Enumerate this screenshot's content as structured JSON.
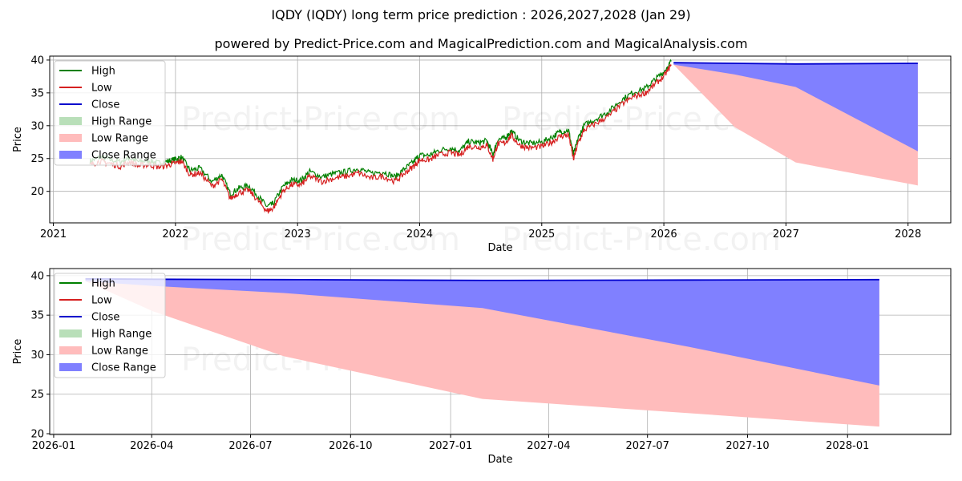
{
  "title": "IQDY (IQDY) long term price prediction : 2026,2027,2028 (Jan 29)",
  "subtitle": "powered by Predict-Price.com and MagicalPrediction.com and MagicalAnalysis.com",
  "watermark": "Predict-Price.com",
  "colors": {
    "high": "#008000",
    "low": "#d62020",
    "close": "#0000cc",
    "high_range": "#b9dfb9",
    "low_range": "#ffbcbc",
    "close_range": "#8080ff",
    "grid": "#b0b0b0"
  },
  "legend": [
    {
      "label": "High",
      "kind": "line",
      "color_key": "high"
    },
    {
      "label": "Low",
      "kind": "line",
      "color_key": "low"
    },
    {
      "label": "Close",
      "kind": "line",
      "color_key": "close"
    },
    {
      "label": "High Range",
      "kind": "patch",
      "color_key": "high_range"
    },
    {
      "label": "Low Range",
      "kind": "patch",
      "color_key": "low_range"
    },
    {
      "label": "Close Range",
      "kind": "patch",
      "color_key": "close_range"
    }
  ],
  "chart_data": [
    {
      "type": "line",
      "name": "long-term",
      "xlabel": "Date",
      "ylabel": "Price",
      "xlim": [
        2020.97,
        2028.35
      ],
      "ylim": [
        15.2,
        40.6
      ],
      "xticks": [
        {
          "value": 2021,
          "label": "2021"
        },
        {
          "value": 2022,
          "label": "2022"
        },
        {
          "value": 2023,
          "label": "2023"
        },
        {
          "value": 2024,
          "label": "2024"
        },
        {
          "value": 2025,
          "label": "2025"
        },
        {
          "value": 2026,
          "label": "2026"
        },
        {
          "value": 2027,
          "label": "2027"
        },
        {
          "value": 2028,
          "label": "2028"
        }
      ],
      "yticks": [
        20,
        25,
        30,
        35,
        40
      ],
      "history": {
        "x": [
          2021.3,
          2021.38,
          2021.45,
          2021.55,
          2021.62,
          2021.7,
          2021.78,
          2021.86,
          2021.94,
          2022.0,
          2022.05,
          2022.12,
          2022.2,
          2022.3,
          2022.38,
          2022.45,
          2022.52,
          2022.6,
          2022.68,
          2022.75,
          2022.8,
          2022.88,
          2022.95,
          2023.03,
          2023.1,
          2023.2,
          2023.3,
          2023.4,
          2023.5,
          2023.6,
          2023.7,
          2023.8,
          2023.88,
          2023.95,
          2024.0,
          2024.08,
          2024.15,
          2024.25,
          2024.33,
          2024.4,
          2024.48,
          2024.55,
          2024.6,
          2024.64,
          2024.7,
          2024.75,
          2024.82,
          2024.9,
          2025.0,
          2025.08,
          2025.15,
          2025.22,
          2025.26,
          2025.3,
          2025.35,
          2025.45,
          2025.55,
          2025.65,
          2025.75,
          2025.85,
          2025.92,
          2026.0,
          2026.06
        ],
        "low": [
          24.0,
          24.6,
          24.3,
          23.8,
          24.5,
          23.9,
          24.1,
          23.7,
          24.0,
          24.3,
          24.6,
          22.5,
          22.8,
          20.8,
          21.8,
          18.9,
          19.8,
          20.2,
          18.5,
          17.0,
          17.4,
          20.0,
          21.0,
          21.0,
          22.3,
          21.5,
          22.0,
          22.3,
          22.8,
          22.0,
          22.3,
          21.5,
          22.8,
          23.8,
          24.8,
          24.8,
          25.5,
          25.9,
          25.5,
          26.9,
          26.7,
          27.0,
          24.9,
          27.2,
          27.4,
          28.5,
          27.0,
          26.6,
          26.8,
          27.5,
          28.4,
          28.6,
          24.9,
          27.5,
          29.4,
          30.4,
          31.5,
          33.2,
          34.4,
          35.0,
          36.2,
          37.5,
          39.3
        ],
        "high": [
          24.6,
          25.2,
          24.9,
          24.5,
          25.1,
          24.5,
          24.7,
          24.3,
          24.6,
          24.9,
          25.2,
          23.2,
          23.5,
          21.5,
          22.5,
          19.6,
          20.5,
          20.9,
          19.2,
          17.7,
          18.1,
          20.7,
          21.7,
          21.7,
          23.0,
          22.2,
          22.7,
          23.0,
          23.5,
          22.7,
          23.0,
          22.2,
          23.5,
          24.5,
          25.5,
          25.5,
          26.2,
          26.6,
          26.2,
          27.6,
          27.4,
          27.7,
          25.6,
          27.9,
          28.1,
          29.2,
          27.7,
          27.3,
          27.5,
          28.2,
          29.1,
          29.3,
          25.6,
          28.2,
          30.1,
          31.1,
          32.2,
          33.9,
          35.1,
          35.7,
          36.9,
          38.2,
          39.8
        ]
      },
      "forecast": {
        "x": [
          2026.08,
          2026.58,
          2027.08,
          2028.08
        ],
        "close": [
          39.6,
          39.5,
          39.4,
          39.5
        ],
        "close_range_low": [
          39.3,
          37.8,
          35.9,
          26.1
        ],
        "low_range_low": [
          39.3,
          29.8,
          24.4,
          20.9
        ]
      }
    },
    {
      "type": "line",
      "name": "zoom",
      "xlabel": "Date",
      "ylabel": "Price",
      "xlim": [
        2025.99,
        2028.26
      ],
      "ylim": [
        19.9,
        40.9
      ],
      "xticks": [
        {
          "value": 2026.0,
          "label": "2026-01"
        },
        {
          "value": 2026.247,
          "label": "2026-04"
        },
        {
          "value": 2026.496,
          "label": "2026-07"
        },
        {
          "value": 2026.748,
          "label": "2026-10"
        },
        {
          "value": 2027.0,
          "label": "2027-01"
        },
        {
          "value": 2027.247,
          "label": "2027-04"
        },
        {
          "value": 2027.496,
          "label": "2027-07"
        },
        {
          "value": 2027.748,
          "label": "2027-10"
        },
        {
          "value": 2028.0,
          "label": "2028-01"
        }
      ],
      "yticks": [
        20,
        25,
        30,
        35,
        40
      ],
      "forecast": {
        "x": [
          2026.08,
          2026.25,
          2026.58,
          2027.08,
          2027.6,
          2028.08
        ],
        "close": [
          39.6,
          39.55,
          39.5,
          39.4,
          39.45,
          39.5
        ],
        "close_range_low": [
          39.3,
          38.7,
          37.8,
          35.9,
          31.0,
          26.1
        ],
        "low_range_low": [
          39.3,
          35.5,
          29.8,
          24.4,
          22.6,
          20.9
        ]
      }
    }
  ]
}
